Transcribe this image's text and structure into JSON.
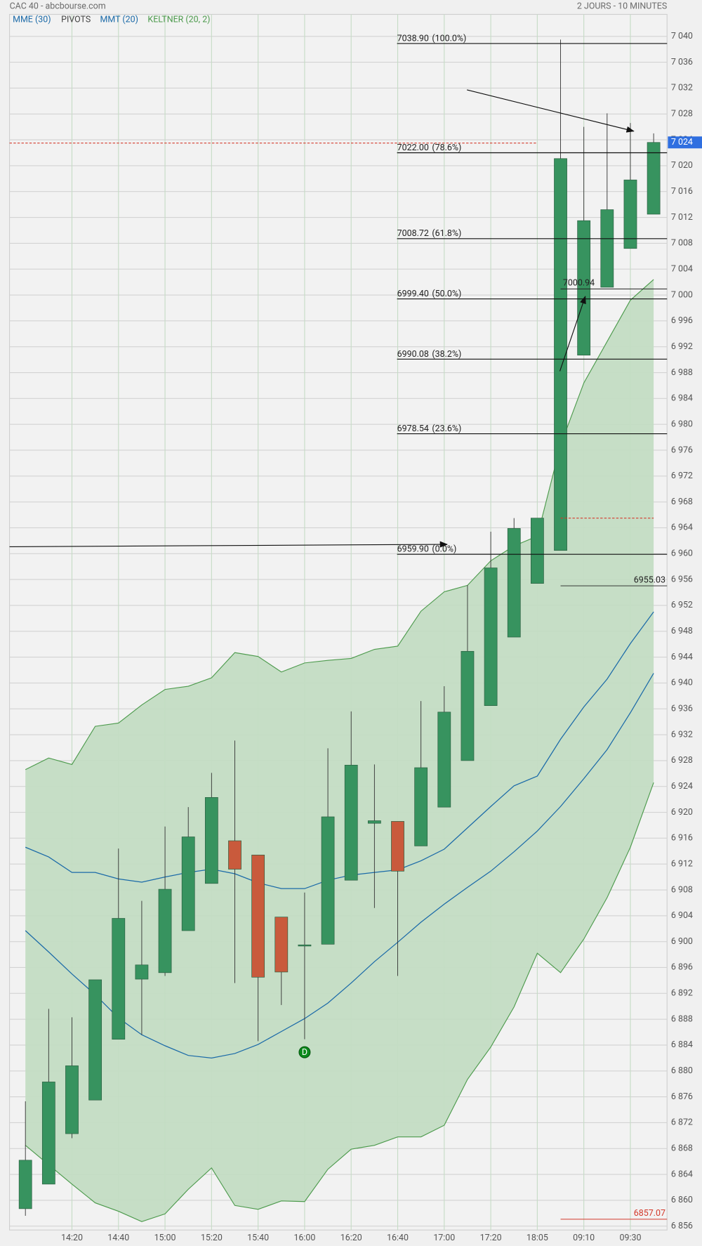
{
  "chart_data": {
    "type": "candlestick",
    "title": "CAC 40 - abcbourse.com",
    "subtitle": "2 JOURS - 10 MINUTES",
    "categories": [
      null,
      null,
      "14:20",
      null,
      "14:40",
      null,
      "15:00",
      null,
      "15:20",
      null,
      "15:40",
      null,
      "16:00",
      null,
      "16:20",
      null,
      "16:40",
      null,
      "17:00",
      null,
      "17:20",
      null,
      "18:05",
      null,
      "09:10",
      null,
      "09:30",
      null
    ],
    "open": [
      6858.7,
      6862.5,
      6870.3,
      6875.5,
      6884.9,
      6894.2,
      6895.2,
      6901.7,
      6909.0,
      6915.6,
      6913.4,
      6903.8,
      6899.5,
      6899.6,
      6909.5,
      6918.3,
      6918.6,
      6914.8,
      6920.8,
      6928.0,
      6936.5,
      6947.1,
      6955.4,
      6960.5,
      6990.7,
      7001.2,
      7007.2,
      7012.5
    ],
    "high": [
      6875.3,
      6889.6,
      6888.3,
      6894.1,
      6914.4,
      6906.3,
      6917.8,
      6920.8,
      6926.1,
      6931.1,
      6913.4,
      6903.8,
      6907.6,
      6929.9,
      6935.6,
      6927.4,
      6918.6,
      6937.2,
      6939.5,
      6955.1,
      6963.4,
      6965.5,
      6965.5,
      7039.5,
      7026.0,
      7028.1,
      7026.6,
      7025.0
    ],
    "low": [
      6857.6,
      6862.5,
      6869.6,
      6875.5,
      6884.9,
      6885.6,
      6894.7,
      6901.7,
      6909.0,
      6893.6,
      6884.6,
      6890.2,
      6884.9,
      6899.6,
      6909.5,
      6905.2,
      6894.7,
      6914.8,
      6920.8,
      6928.0,
      6936.5,
      6947.1,
      6955.4,
      6960.5,
      6990.7,
      7001.2,
      7007.2,
      7012.5
    ],
    "close": [
      6866.2,
      6878.3,
      6880.8,
      6894.1,
      6903.6,
      6896.4,
      6908.1,
      6916.2,
      6922.3,
      6911.2,
      6894.5,
      6895.3,
      6899.5,
      6919.3,
      6927.3,
      6918.7,
      6910.9,
      6926.9,
      6935.5,
      6944.9,
      6957.8,
      6963.9,
      6965.5,
      7021.1,
      7011.5,
      7013.2,
      7017.8,
      7023.6
    ],
    "up_color": "#37935f",
    "down_color": "#c95a3c",
    "series": [
      {
        "name": "MME (30)",
        "color": "#1b6aa8",
        "values": [
          6914.6,
          6913.1,
          6910.7,
          6910.7,
          6909.7,
          6909.2,
          6910.0,
          6910.7,
          6911.2,
          6910.5,
          6909.1,
          6908.2,
          6908.2,
          6909.5,
          6910.3,
          6910.7,
          6911.1,
          6912.5,
          6914.3,
          6917.6,
          6920.9,
          6924.1,
          6925.6,
          6931.3,
          6936.3,
          6940.6,
          6946.1,
          6951.0
        ]
      },
      {
        "name": "MMT (20)",
        "color": "#1b6aa8",
        "values": [
          6901.7,
          6898.4,
          6895.0,
          6891.8,
          6888.2,
          6885.6,
          6883.9,
          6882.4,
          6882.0,
          6882.7,
          6884.1,
          6886.1,
          6888.1,
          6890.5,
          6893.6,
          6896.9,
          6899.9,
          6903.0,
          6905.8,
          6908.4,
          6910.9,
          6913.9,
          6917.1,
          6920.9,
          6925.2,
          6929.7,
          6935.4,
          6941.5
        ]
      }
    ],
    "pivots_label": "PIVOTS",
    "keltner": {
      "name": "KELTNER (20, 2)",
      "color": "#4c9a4c",
      "fill": "#c3dcc3",
      "upper": [
        6926.6,
        6928.4,
        6927.4,
        6933.3,
        6933.8,
        6936.6,
        6939.0,
        6939.5,
        6940.8,
        6944.7,
        6944.1,
        6941.7,
        6943.1,
        6943.5,
        6943.8,
        6945.2,
        6945.7,
        6951.1,
        6954.1,
        6955.1,
        6958.9,
        6961.2,
        6962.7,
        6976.8,
        6986.4,
        6992.8,
        6999.2,
        7002.4
      ],
      "lower": [
        6868.5,
        6865.5,
        6862.5,
        6859.6,
        6858.3,
        6856.7,
        6857.9,
        6861.7,
        6865.0,
        6859.2,
        6858.6,
        6859.9,
        6859.8,
        6864.8,
        6867.9,
        6868.5,
        6869.8,
        6869.8,
        6871.6,
        6878.7,
        6883.7,
        6889.9,
        6898.2,
        6895.2,
        6900.4,
        6906.8,
        6914.6,
        6924.6
      ]
    },
    "fibonacci": [
      {
        "value": 7038.9,
        "label": "7038.90",
        "ratio": "(100.0%)"
      },
      {
        "value": 7022.0,
        "label": "7022.00",
        "ratio": "(78.6%)"
      },
      {
        "value": 7008.72,
        "label": "7008.72",
        "ratio": "(61.8%)"
      },
      {
        "value": 6999.4,
        "label": "6999.40",
        "ratio": "(50.0%)"
      },
      {
        "value": 6990.08,
        "label": "6990.08",
        "ratio": "(38.2%)"
      },
      {
        "value": 6978.54,
        "label": "6978.54",
        "ratio": "(23.6%)"
      },
      {
        "value": 6959.9,
        "label": "6959.90",
        "ratio": "(0.0%)"
      }
    ],
    "levels": [
      {
        "value": 7000.94,
        "label": "7000.94",
        "color": "#222222"
      },
      {
        "value": 6955.03,
        "label": "6955.03",
        "color": "#222222"
      },
      {
        "value": 6857.07,
        "label": "6857.07",
        "color": "#d33a2c"
      }
    ],
    "dashed_levels": [
      7023.5,
      6965.5
    ],
    "markers": [
      {
        "index": 12,
        "value": 6882.9,
        "label": "D"
      }
    ],
    "last_price": {
      "value": 7023.6,
      "label": "7 024"
    },
    "ylim": [
      6855.4,
      7043.4
    ],
    "yticks": [
      {
        "value": 6856,
        "label": "6 856"
      },
      {
        "value": 6860,
        "label": "6 860"
      },
      {
        "value": 6864,
        "label": "6 864"
      },
      {
        "value": 6868,
        "label": "6 868"
      },
      {
        "value": 6872,
        "label": "6 872"
      },
      {
        "value": 6876,
        "label": "6 876"
      },
      {
        "value": 6880,
        "label": "6 880"
      },
      {
        "value": 6884,
        "label": "6 884"
      },
      {
        "value": 6888,
        "label": "6 888"
      },
      {
        "value": 6892,
        "label": "6 892"
      },
      {
        "value": 6896,
        "label": "6 896"
      },
      {
        "value": 6900,
        "label": "6 900"
      },
      {
        "value": 6904,
        "label": "6 904"
      },
      {
        "value": 6908,
        "label": "6 908"
      },
      {
        "value": 6912,
        "label": "6 912"
      },
      {
        "value": 6916,
        "label": "6 916"
      },
      {
        "value": 6920,
        "label": "6 920"
      },
      {
        "value": 6924,
        "label": "6 924"
      },
      {
        "value": 6928,
        "label": "6 928"
      },
      {
        "value": 6932,
        "label": "6 932"
      },
      {
        "value": 6936,
        "label": "6 936"
      },
      {
        "value": 6940,
        "label": "6 940"
      },
      {
        "value": 6944,
        "label": "6 944"
      },
      {
        "value": 6948,
        "label": "6 948"
      },
      {
        "value": 6952,
        "label": "6 952"
      },
      {
        "value": 6956,
        "label": "6 956"
      },
      {
        "value": 6960,
        "label": "6 960"
      },
      {
        "value": 6964,
        "label": "6 964"
      },
      {
        "value": 6968,
        "label": "6 968"
      },
      {
        "value": 6972,
        "label": "6 972"
      },
      {
        "value": 6976,
        "label": "6 976"
      },
      {
        "value": 6980,
        "label": "6 980"
      },
      {
        "value": 6984,
        "label": "6 984"
      },
      {
        "value": 6988,
        "label": "6 988"
      },
      {
        "value": 6992,
        "label": "6 992"
      },
      {
        "value": 6996,
        "label": "6 996"
      },
      {
        "value": 7000,
        "label": "7 000"
      },
      {
        "value": 7004,
        "label": "7 004"
      },
      {
        "value": 7008,
        "label": "7 008"
      },
      {
        "value": 7012,
        "label": "7 012"
      },
      {
        "value": 7016,
        "label": "7 016"
      },
      {
        "value": 7020,
        "label": "7 020"
      },
      {
        "value": 7024,
        "label": "7 024"
      },
      {
        "value": 7028,
        "label": "7 028"
      },
      {
        "value": 7032,
        "label": "7 032"
      },
      {
        "value": 7036,
        "label": "7 036"
      },
      {
        "value": 7040,
        "label": "7 040"
      }
    ],
    "grid": true
  }
}
